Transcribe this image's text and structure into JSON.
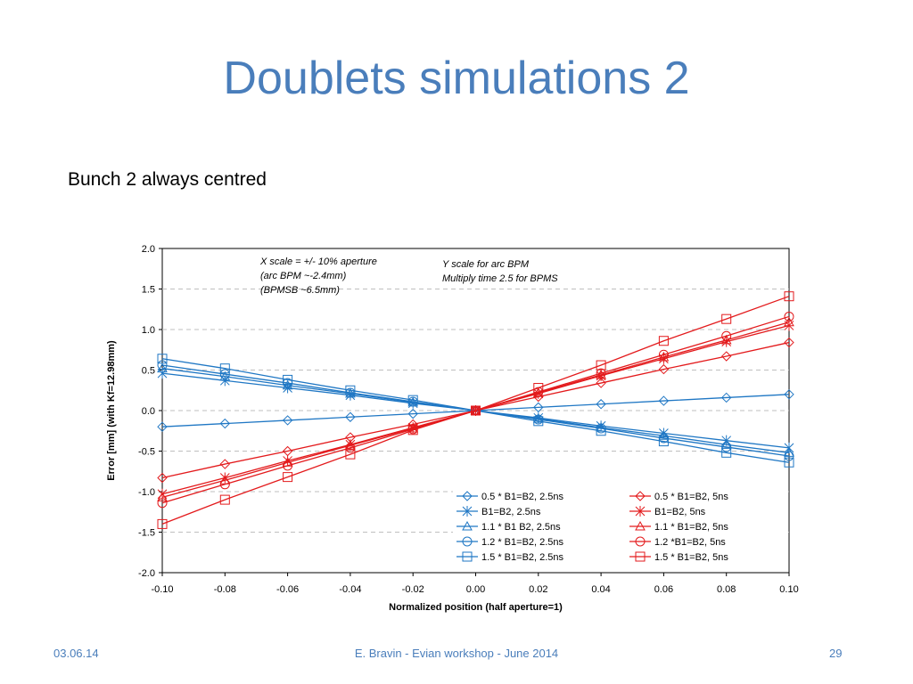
{
  "slide": {
    "title": "Doublets simulations 2",
    "subtitle": "Bunch 2 always centred",
    "footer_date": "03.06.14",
    "footer_center": "E. Bravin - Evian workshop - June 2014",
    "footer_page": "29"
  },
  "chart_data": {
    "type": "line",
    "xlabel": "Normalized position   (half aperture=1)",
    "ylabel": "Error [mm] (with Kf=12.98mm)",
    "xlim": [
      -0.1,
      0.1
    ],
    "ylim": [
      -2.0,
      2.0
    ],
    "x_ticks": [
      "-0.10",
      "-0.08",
      "-0.06",
      "-0.04",
      "-0.02",
      "0.00",
      "0.02",
      "0.04",
      "0.06",
      "0.08",
      "0.10"
    ],
    "y_ticks": [
      "2.0",
      "1.5",
      "1.0",
      "0.5",
      "0.0",
      "-0.5",
      "-1.0",
      "-1.5",
      "-2.0"
    ],
    "grid": "horizontal dashed",
    "legend_position": "bottom-right",
    "annotations": [
      {
        "lines": [
          "X scale = +/- 10% aperture",
          "(arc BPM ~-2.4mm)",
          "(BPMSB    ~6.5mm)"
        ]
      },
      {
        "lines": [
          "Y scale for arc BPM",
          "Multiply time 2.5 for BPMS"
        ]
      }
    ],
    "x": [
      -0.1,
      -0.08,
      -0.06,
      -0.04,
      -0.02,
      0.0,
      0.02,
      0.04,
      0.06,
      0.08,
      0.1
    ],
    "series": [
      {
        "name": "0.5 * B1=B2, 2.5ns",
        "color": "#1f77c4",
        "marker": "diamond",
        "values": [
          -0.2,
          -0.16,
          -0.12,
          -0.08,
          -0.04,
          0.0,
          0.04,
          0.08,
          0.12,
          0.16,
          0.2
        ]
      },
      {
        "name": "B1=B2, 2.5ns",
        "color": "#1f77c4",
        "marker": "star",
        "values": [
          0.46,
          0.37,
          0.28,
          0.19,
          0.09,
          0.0,
          -0.09,
          -0.19,
          -0.28,
          -0.37,
          -0.46
        ]
      },
      {
        "name": "1.1 * B1 B2, 2.5ns",
        "color": "#1f77c4",
        "marker": "triangle",
        "values": [
          0.52,
          0.42,
          0.31,
          0.21,
          0.1,
          0.0,
          -0.1,
          -0.21,
          -0.31,
          -0.42,
          -0.52
        ]
      },
      {
        "name": "1.2 * B1=B2, 2.5ns",
        "color": "#1f77c4",
        "marker": "circle",
        "values": [
          0.56,
          0.45,
          0.34,
          0.22,
          0.11,
          0.0,
          -0.11,
          -0.22,
          -0.34,
          -0.45,
          -0.56
        ]
      },
      {
        "name": "1.5 * B1=B2, 2.5ns",
        "color": "#1f77c4",
        "marker": "square",
        "values": [
          0.64,
          0.52,
          0.38,
          0.25,
          0.13,
          0.0,
          -0.13,
          -0.25,
          -0.38,
          -0.52,
          -0.64
        ]
      },
      {
        "name": "0.5 * B1=B2, 5ns",
        "color": "#e31a1c",
        "marker": "diamond",
        "values": [
          -0.83,
          -0.66,
          -0.5,
          -0.33,
          -0.17,
          0.0,
          0.17,
          0.34,
          0.51,
          0.67,
          0.84
        ]
      },
      {
        "name": "B1=B2, 5ns",
        "color": "#e31a1c",
        "marker": "star",
        "values": [
          -1.03,
          -0.83,
          -0.62,
          -0.42,
          -0.21,
          0.0,
          0.21,
          0.43,
          0.64,
          0.85,
          1.05
        ]
      },
      {
        "name": "1.1 * B1=B2, 5ns",
        "color": "#e31a1c",
        "marker": "triangle",
        "values": [
          -1.07,
          -0.86,
          -0.64,
          -0.43,
          -0.22,
          0.0,
          0.22,
          0.44,
          0.66,
          0.87,
          1.09
        ]
      },
      {
        "name": "1.2 *B1=B2, 5ns",
        "color": "#e31a1c",
        "marker": "circle",
        "values": [
          -1.14,
          -0.91,
          -0.68,
          -0.46,
          -0.23,
          0.0,
          0.23,
          0.46,
          0.69,
          0.92,
          1.16
        ]
      },
      {
        "name": "1.5 * B1=B2, 5ns",
        "color": "#e31a1c",
        "marker": "square",
        "values": [
          -1.4,
          -1.1,
          -0.82,
          -0.54,
          -0.24,
          0.0,
          0.28,
          0.56,
          0.86,
          1.13,
          1.41
        ]
      }
    ]
  }
}
